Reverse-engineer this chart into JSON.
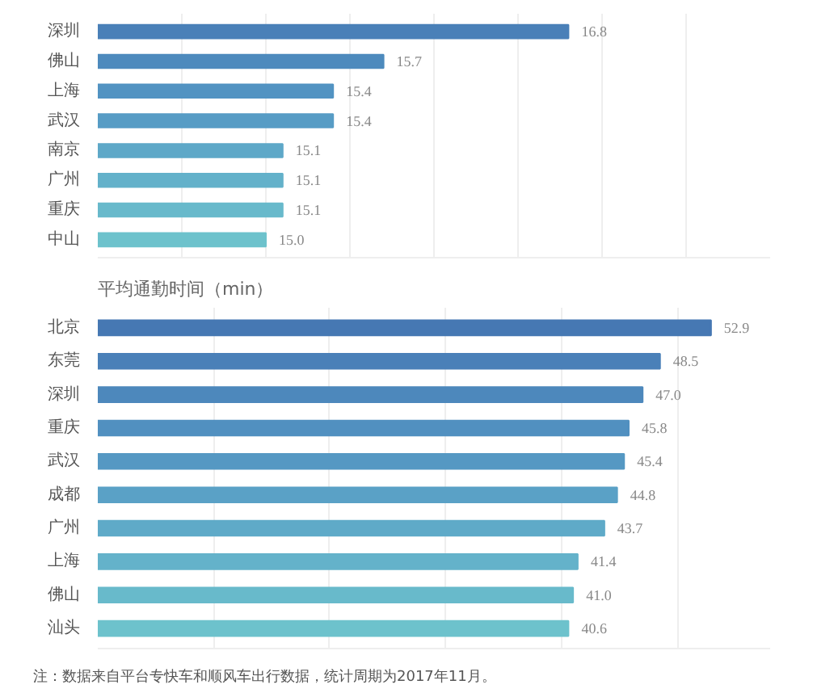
{
  "chart_data": [
    {
      "type": "bar",
      "orientation": "horizontal",
      "categories": [
        "深圳",
        "佛山",
        "上海",
        "武汉",
        "南京",
        "广州",
        "重庆",
        "中山"
      ],
      "values": [
        16.8,
        15.7,
        15.4,
        15.4,
        15.1,
        15.1,
        15.1,
        15.0
      ],
      "colors": [
        "#4a80b8",
        "#4d8abd",
        "#5293c2",
        "#579cc5",
        "#5ea8c8",
        "#63b1ca",
        "#68b9cb",
        "#6dc2cc"
      ],
      "xlim": [
        14,
        18
      ],
      "xticks": [
        {
          "value": 14.5,
          "label": null
        },
        {
          "value": 15,
          "label": null
        },
        {
          "value": 15.5,
          "label": null
        },
        {
          "value": 16,
          "label": null
        },
        {
          "value": 16.5,
          "label": null
        },
        {
          "value": 17,
          "label": null
        },
        {
          "value": 17.5,
          "label": null
        }
      ],
      "value_labels": [
        "16.8",
        "15.7",
        "15.4",
        "15.4",
        "15.1",
        "15.1",
        "15.1",
        "15.0"
      ],
      "grid": "x",
      "tick_labels": "y"
    },
    {
      "type": "bar",
      "orientation": "horizontal",
      "title": "平均通勤时间（min）",
      "categories": [
        "北京",
        "东莞",
        "深圳",
        "重庆",
        "武汉",
        "成都",
        "广州",
        "上海",
        "佛山",
        "汕头"
      ],
      "values": [
        52.9,
        48.5,
        47.0,
        45.8,
        45.4,
        44.8,
        43.7,
        41.4,
        41.0,
        40.6
      ],
      "colors": [
        "#4678b3",
        "#4a80b8",
        "#4d88bc",
        "#5190c0",
        "#5598c3",
        "#5aa1c6",
        "#5faac8",
        "#64b2ca",
        "#68bacb",
        "#6dc2cc"
      ],
      "value_labels": [
        "52.9",
        "48.5",
        "47.0",
        "45.8",
        "45.4",
        "44.8",
        "43.7",
        "41.4",
        "41.0",
        "40.6"
      ],
      "xlim": [
        0,
        58
      ],
      "xticks": [
        {
          "value": 10,
          "label": null
        },
        {
          "value": 20,
          "label": null
        },
        {
          "value": 30,
          "label": null
        },
        {
          "value": 40,
          "label": null
        },
        {
          "value": 50,
          "label": null
        }
      ],
      "grid": "x",
      "tick_labels": "y",
      "annotations": [
        "注：数据来自平台专快车和顺风车出行数据，统计周期为2017年11月。"
      ]
    }
  ]
}
